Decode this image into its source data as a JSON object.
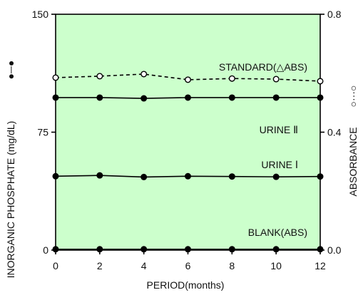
{
  "chart_data": {
    "type": "line",
    "x": [
      0,
      2,
      4,
      6,
      8,
      10,
      12
    ],
    "xlabel": "PERIOD(months)",
    "ylabel": "INORGANIC PHOSPHATE (mg/dL)",
    "y2label": "ABSORBANCE",
    "xlim": [
      0,
      12
    ],
    "ylim": [
      0,
      150
    ],
    "y2lim": [
      0,
      0.8
    ],
    "xticks": [
      0,
      2,
      4,
      6,
      8,
      10,
      12
    ],
    "xtick_labels": [
      "0",
      "2",
      "4",
      "6",
      "8",
      "10",
      "12"
    ],
    "yticks": [
      0,
      75,
      150
    ],
    "ytick_labels": [
      "0",
      "75",
      "150"
    ],
    "y2ticks": [
      0,
      0.4,
      0.8
    ],
    "y2tick_labels": [
      "0.0",
      "0.4",
      "0.8"
    ],
    "left_axis_marker": "●─●",
    "right_axis_marker": "○···○",
    "plot_background": "#ccffcc",
    "line_color": "#000000",
    "grid": false,
    "series": [
      {
        "name": "STANDARD(△ABS)",
        "axis": "right",
        "style": "dashed",
        "marker": "open-circle",
        "values": [
          0.585,
          0.59,
          0.597,
          0.578,
          0.582,
          0.58,
          0.573
        ]
      },
      {
        "name": "URINE Ⅱ",
        "axis": "left",
        "style": "solid",
        "marker": "filled-circle",
        "values": [
          97,
          97,
          96.5,
          97,
          97,
          97,
          97
        ]
      },
      {
        "name": "URINE Ⅰ",
        "axis": "left",
        "style": "solid",
        "marker": "filled-circle",
        "values": [
          47,
          47.5,
          46.5,
          47,
          46.8,
          46.6,
          46.8
        ]
      },
      {
        "name": "BLANK(ABS)",
        "axis": "right",
        "style": "solid",
        "marker": "filled-circle",
        "values": [
          0.003,
          0.003,
          0.003,
          0.003,
          0.003,
          0.003,
          0.003
        ]
      }
    ]
  }
}
